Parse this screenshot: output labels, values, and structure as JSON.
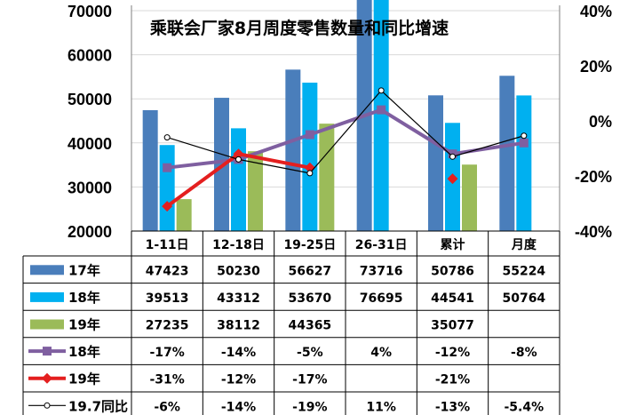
{
  "chart_data": {
    "type": "bar",
    "title": "乘联会厂家8月周度零售数量和同比增速",
    "categories": [
      "1-11日",
      "12-18日",
      "19-25日",
      "26-31日",
      "累计",
      "月度"
    ],
    "left_axis": {
      "ticks": [
        "20000",
        "30000",
        "40000",
        "50000",
        "60000",
        "70000"
      ],
      "ylim": [
        20000,
        70000
      ]
    },
    "right_axis": {
      "ticks": [
        "40%",
        "20%",
        "0%",
        "-20%",
        "-40%"
      ],
      "ylim": [
        -0.4,
        0.4
      ]
    },
    "bar_series": [
      {
        "name": "17年",
        "color": "#4a7ebb",
        "values": [
          47423,
          50230,
          56627,
          73716,
          50786,
          55224
        ],
        "labels": [
          "47423",
          "50230",
          "56627",
          "73716",
          "50786",
          "55224"
        ]
      },
      {
        "name": "18年",
        "color": "#00b0f0",
        "values": [
          39513,
          43312,
          53670,
          76695,
          44541,
          50764
        ],
        "labels": [
          "39513",
          "43312",
          "53670",
          "76695",
          "44541",
          "50764"
        ]
      },
      {
        "name": "19年",
        "color": "#9bbb59",
        "values": [
          27235,
          38112,
          44365,
          null,
          35077,
          null
        ],
        "labels": [
          "27235",
          "38112",
          "44365",
          "",
          "35077",
          ""
        ]
      }
    ],
    "line_series": [
      {
        "name": "18年",
        "color": "#7f5fa0",
        "marker": "square",
        "values": [
          -0.17,
          -0.14,
          -0.05,
          0.04,
          -0.12,
          -0.08
        ],
        "labels": [
          "-17%",
          "-14%",
          "-5%",
          "4%",
          "-12%",
          "-8%"
        ]
      },
      {
        "name": "19年",
        "color": "#e41f1f",
        "marker": "diamond",
        "values": [
          -0.31,
          -0.12,
          -0.17,
          null,
          -0.21,
          null
        ],
        "labels": [
          "-31%",
          "-12%",
          "-17%",
          "",
          "-21%",
          ""
        ]
      },
      {
        "name": "19.7同比",
        "color": "#000000",
        "marker": "circle",
        "values": [
          -0.06,
          -0.14,
          -0.19,
          0.11,
          -0.13,
          -0.054
        ],
        "labels": [
          "-6%",
          "-14%",
          "-19%",
          "11%",
          "-13%",
          "-5.4%"
        ]
      }
    ]
  }
}
